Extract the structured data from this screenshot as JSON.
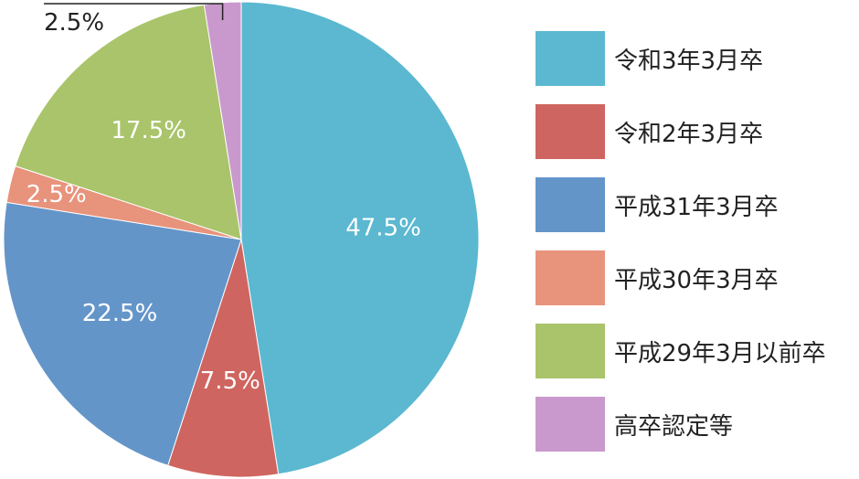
{
  "chart_data": {
    "type": "pie",
    "start_angle_deg": 0,
    "direction": "clockwise",
    "slices": [
      {
        "name": "令和3年3月卒",
        "value": 47.5,
        "label": "47.5%",
        "color": "#5bb8d0"
      },
      {
        "name": "令和2年3月卒",
        "value": 7.5,
        "label": "7.5%",
        "color": "#cf6560"
      },
      {
        "name": "平成31年3月卒",
        "value": 22.5,
        "label": "22.5%",
        "color": "#6495c9"
      },
      {
        "name": "平成30年3月卒",
        "value": 2.5,
        "label": "2.5%",
        "color": "#e8937c"
      },
      {
        "name": "平成29年3月以前卒",
        "value": 17.5,
        "label": "17.5%",
        "color": "#a9c46a"
      },
      {
        "name": "高卒認定等",
        "value": 2.5,
        "label": "2.5%",
        "color": "#c999cd",
        "label_outside": true
      }
    ],
    "legend_placement": "right"
  }
}
